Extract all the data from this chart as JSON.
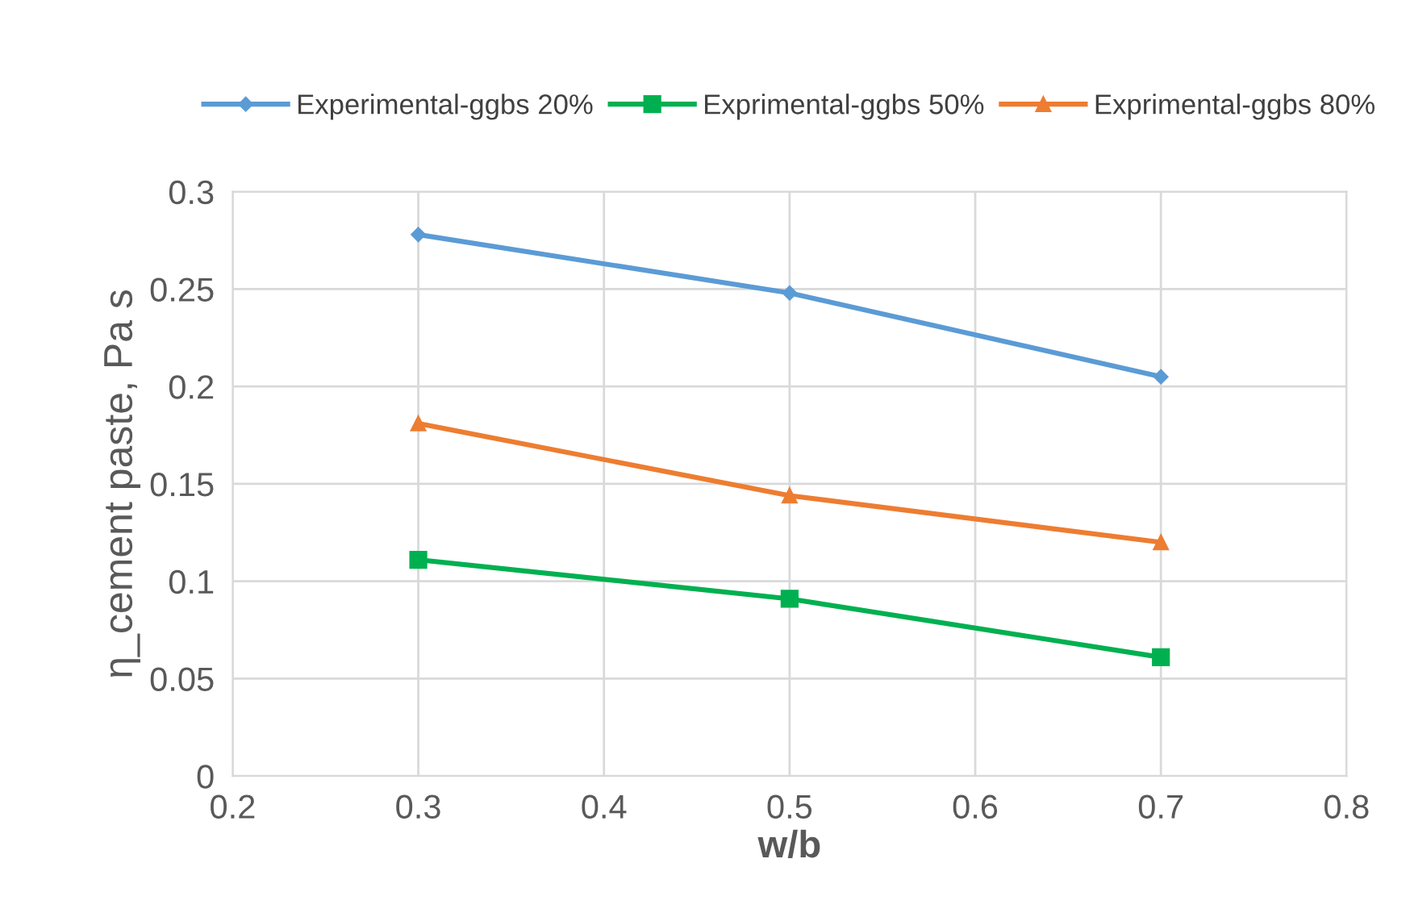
{
  "chart_data": {
    "type": "line",
    "xlabel": "w/b",
    "ylabel": "η_cement paste, Pa s",
    "x": [
      0.3,
      0.5,
      0.7
    ],
    "series": [
      {
        "name": "Experimental-ggbs 20%",
        "color": "#5b9bd5",
        "marker": "diamond",
        "values": [
          0.278,
          0.248,
          0.205
        ]
      },
      {
        "name": "Exprimental-ggbs 50%",
        "color": "#00b050",
        "marker": "square",
        "values": [
          0.111,
          0.091,
          0.061
        ]
      },
      {
        "name": "Exprimental-ggbs 80%",
        "color": "#ed7d31",
        "marker": "triangle",
        "values": [
          0.181,
          0.144,
          0.12
        ]
      }
    ],
    "xlim": [
      0.2,
      0.8
    ],
    "xticks": [
      0.2,
      0.3,
      0.4,
      0.5,
      0.6,
      0.7,
      0.8
    ],
    "ylim": [
      0,
      0.3
    ],
    "yticks": [
      0,
      0.05,
      0.1,
      0.15,
      0.2,
      0.25,
      0.3
    ],
    "grid": true,
    "legend": "top"
  }
}
